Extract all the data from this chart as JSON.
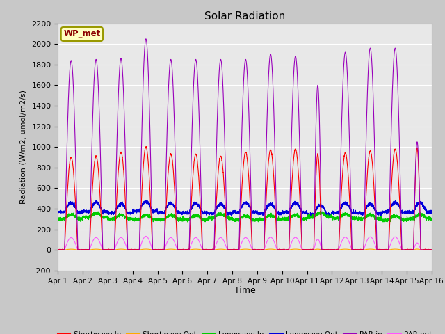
{
  "title": "Solar Radiation",
  "xlabel": "Time",
  "ylabel": "Radiation (W/m2, umol/m2/s)",
  "ylim": [
    -200,
    2200
  ],
  "yticks": [
    -200,
    0,
    200,
    400,
    600,
    800,
    1000,
    1200,
    1400,
    1600,
    1800,
    2000,
    2200
  ],
  "xlim": [
    0,
    15
  ],
  "xtick_labels": [
    "Apr 1",
    "Apr 2",
    "Apr 3",
    "Apr 4",
    "Apr 5",
    "Apr 6",
    "Apr 7",
    "Apr 8",
    "Apr 9",
    "Apr 10",
    "Apr 11",
    "Apr 12",
    "Apr 13",
    "Apr 14",
    "Apr 15",
    "Apr 16"
  ],
  "station_label": "WP_met",
  "fig_bg": "#c8c8c8",
  "axes_bg": "#e8e8e8",
  "grid_color": "white",
  "colors": {
    "sw_in": "#ff0000",
    "sw_out": "#ffaa00",
    "lw_in": "#00cc00",
    "lw_out": "#0000dd",
    "par_in": "#9900bb",
    "par_out": "#ff55ff"
  },
  "n_days": 15,
  "sw_in_peaks": [
    900,
    910,
    950,
    1000,
    930,
    930,
    910,
    950,
    970,
    980,
    930,
    940,
    960,
    980,
    990
  ],
  "par_in_peaks": [
    1840,
    1850,
    1860,
    2050,
    1850,
    1850,
    1850,
    1850,
    1900,
    1880,
    1600,
    1920,
    1960,
    1960,
    1050
  ],
  "par_in_partial": [
    1,
    1,
    1,
    1,
    1,
    1,
    1,
    1,
    1,
    1,
    0.6,
    1,
    1,
    1,
    0.55
  ],
  "lw_in_base": 300,
  "lw_out_base": 360
}
